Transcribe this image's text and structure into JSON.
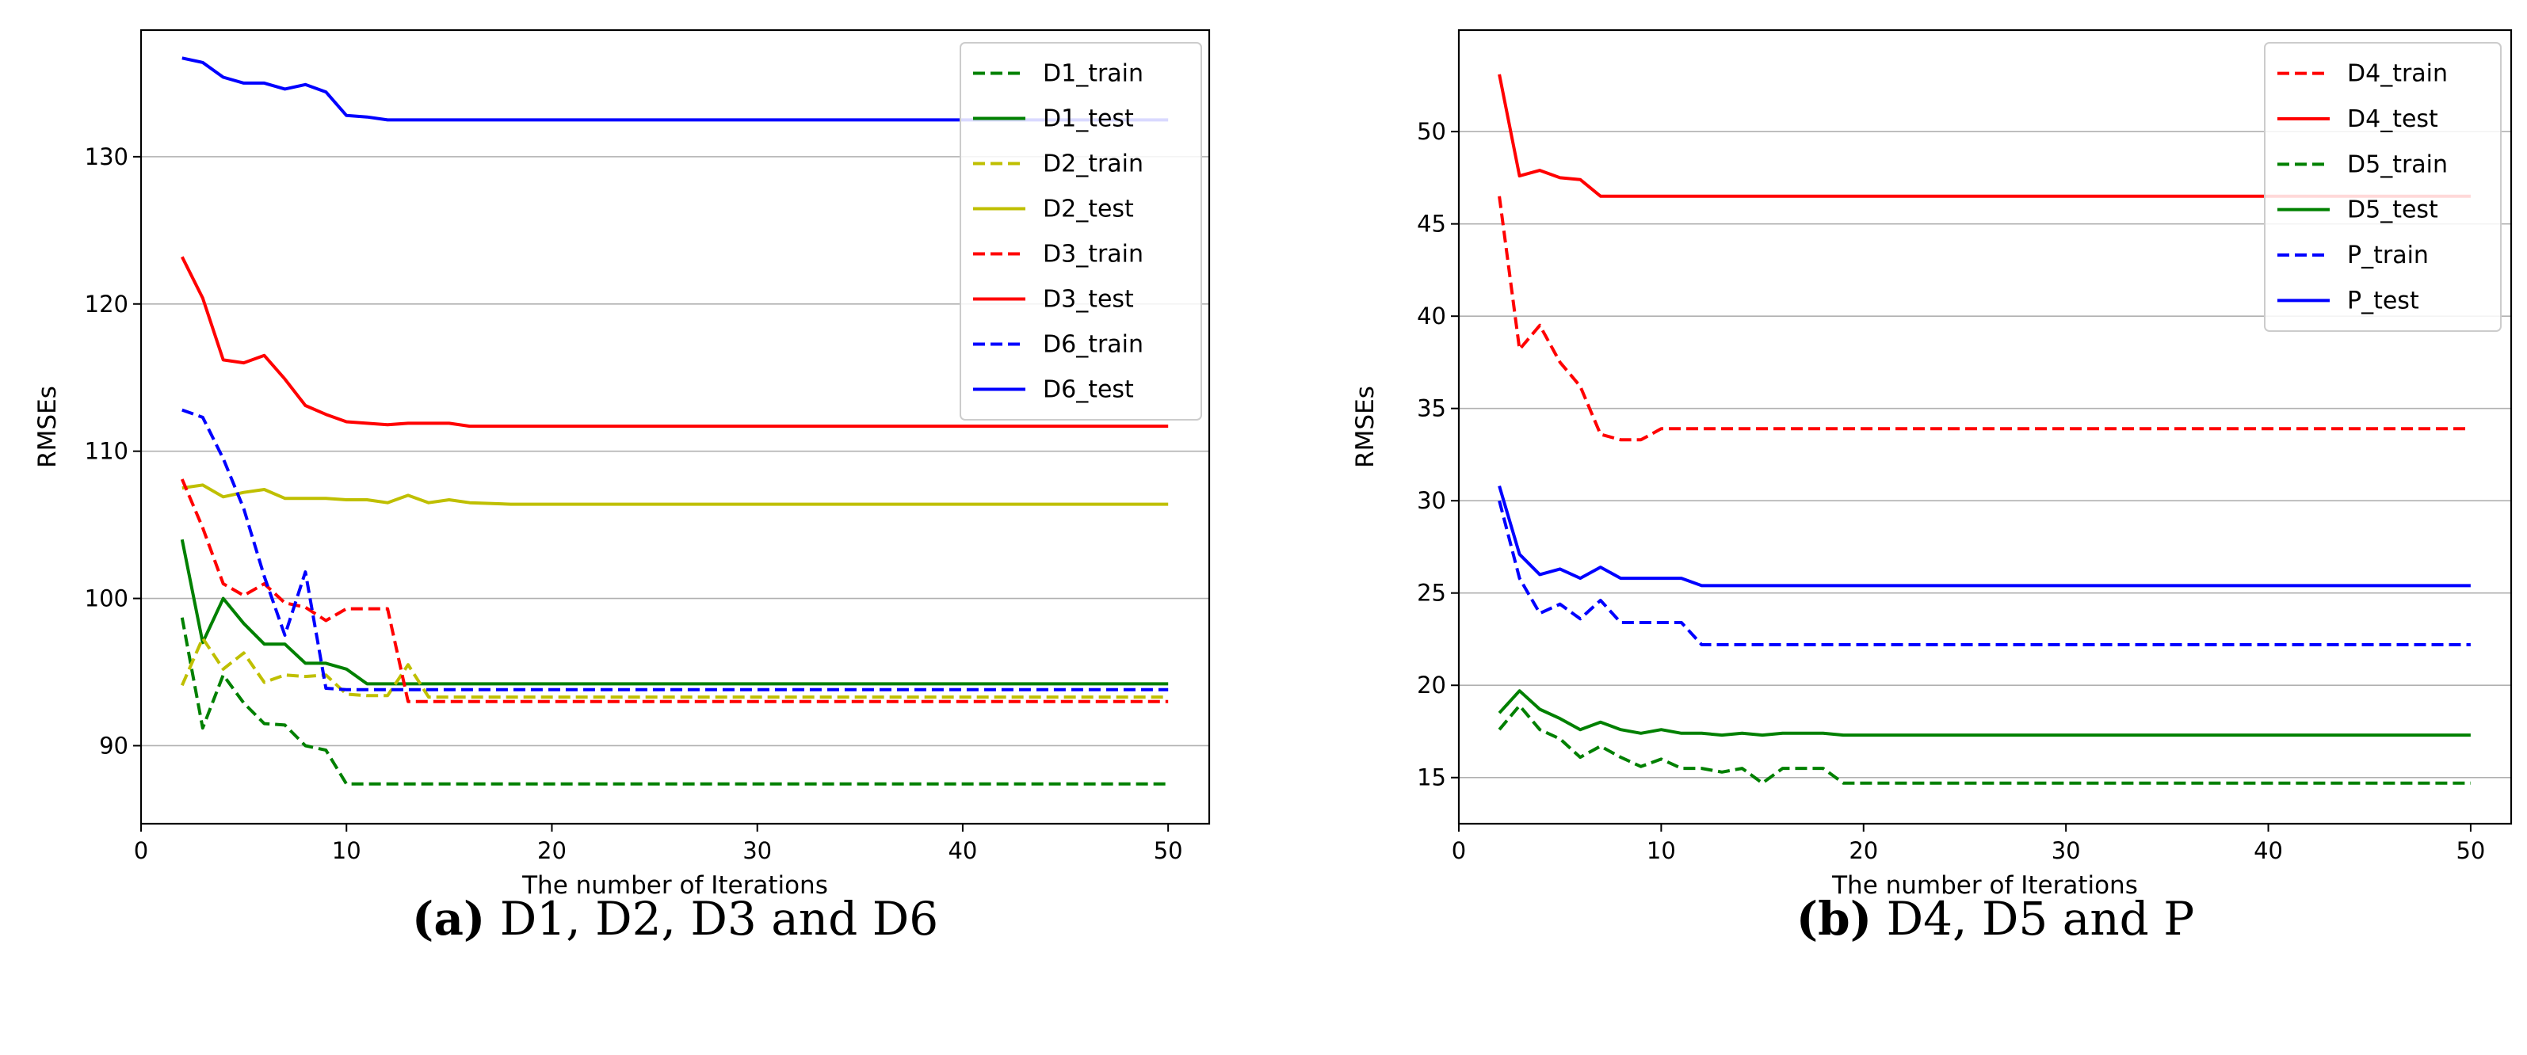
{
  "chart_data": [
    {
      "type": "line",
      "xlabel": "The number of Iterations",
      "ylabel": "RMSEs",
      "xlim": [
        0,
        52
      ],
      "ylim": [
        84.7,
        138.6
      ],
      "xticks": [
        0,
        10,
        20,
        30,
        40,
        50
      ],
      "yticks": [
        90,
        100,
        110,
        120,
        130
      ],
      "grid": "horizontal",
      "legend_position": "top-right",
      "caption_letter": "(a)",
      "caption_text": "D1, D2, D3 and D6",
      "series": [
        {
          "name": "D1_train",
          "color": "#008000",
          "style": "dashed",
          "x": [
            2,
            3,
            4,
            5,
            6,
            7,
            8,
            9,
            10,
            50
          ],
          "y": [
            98.7,
            91.2,
            94.8,
            92.9,
            91.5,
            91.4,
            90.0,
            89.7,
            87.4,
            87.4
          ]
        },
        {
          "name": "D1_test",
          "color": "#008000",
          "style": "solid",
          "x": [
            2,
            3,
            4,
            5,
            6,
            7,
            8,
            9,
            10,
            11,
            12,
            50
          ],
          "y": [
            104.0,
            97.0,
            100.0,
            98.3,
            96.9,
            96.9,
            95.6,
            95.6,
            95.2,
            94.2,
            94.2,
            94.2
          ]
        },
        {
          "name": "D2_train",
          "color": "#bfbf00",
          "style": "dashed",
          "x": [
            2,
            3,
            4,
            5,
            6,
            7,
            8,
            9,
            10,
            11,
            12,
            13,
            14,
            50
          ],
          "y": [
            94.1,
            97.3,
            95.2,
            96.3,
            94.3,
            94.8,
            94.7,
            94.8,
            93.5,
            93.4,
            93.4,
            95.5,
            93.3,
            93.3
          ]
        },
        {
          "name": "D2_test",
          "color": "#bfbf00",
          "style": "solid",
          "x": [
            2,
            3,
            4,
            5,
            6,
            7,
            8,
            9,
            10,
            11,
            12,
            13,
            14,
            15,
            16,
            18,
            50
          ],
          "y": [
            107.5,
            107.7,
            106.9,
            107.2,
            107.4,
            106.8,
            106.8,
            106.8,
            106.7,
            106.7,
            106.5,
            107.0,
            106.5,
            106.7,
            106.5,
            106.4,
            106.4
          ]
        },
        {
          "name": "D3_train",
          "color": "#ff0000",
          "style": "dashed",
          "x": [
            2,
            3,
            4,
            5,
            6,
            7,
            8,
            9,
            10,
            11,
            12,
            13,
            50
          ],
          "y": [
            108.1,
            104.8,
            101.0,
            100.2,
            101.0,
            99.7,
            99.4,
            98.5,
            99.3,
            99.3,
            99.3,
            93.0,
            93.0
          ]
        },
        {
          "name": "D3_test",
          "color": "#ff0000",
          "style": "solid",
          "x": [
            2,
            3,
            4,
            5,
            6,
            7,
            8,
            9,
            10,
            11,
            12,
            13,
            14,
            15,
            16,
            50
          ],
          "y": [
            123.2,
            120.4,
            116.2,
            116.0,
            116.5,
            114.9,
            113.1,
            112.5,
            112.0,
            111.9,
            111.8,
            111.9,
            111.9,
            111.9,
            111.7,
            111.7
          ]
        },
        {
          "name": "D6_train",
          "color": "#0000ff",
          "style": "dashed",
          "x": [
            2,
            3,
            4,
            5,
            6,
            7,
            8,
            9,
            10,
            11,
            50
          ],
          "y": [
            112.8,
            112.3,
            109.5,
            106.1,
            101.5,
            97.5,
            101.8,
            93.9,
            93.8,
            93.8,
            93.8
          ]
        },
        {
          "name": "D6_test",
          "color": "#0000ff",
          "style": "solid",
          "x": [
            2,
            3,
            4,
            5,
            6,
            7,
            8,
            9,
            10,
            11,
            12,
            50
          ],
          "y": [
            136.7,
            136.4,
            135.4,
            135.0,
            135.0,
            134.6,
            134.9,
            134.4,
            132.8,
            132.7,
            132.5,
            132.5
          ]
        }
      ]
    },
    {
      "type": "line",
      "xlabel": "The number of Iterations",
      "ylabel": "RMSEs",
      "xlim": [
        0,
        52
      ],
      "ylim": [
        12.5,
        55.5
      ],
      "xticks": [
        0,
        10,
        20,
        30,
        40,
        50
      ],
      "yticks": [
        15,
        20,
        25,
        30,
        35,
        40,
        45,
        50
      ],
      "grid": "horizontal",
      "legend_position": "top-right",
      "caption_letter": "(b)",
      "caption_text": "D4, D5 and P",
      "series": [
        {
          "name": "D4_train",
          "color": "#ff0000",
          "style": "dashed",
          "x": [
            2,
            3,
            4,
            5,
            6,
            7,
            8,
            9,
            10,
            50
          ],
          "y": [
            46.5,
            38.2,
            39.5,
            37.5,
            36.2,
            33.6,
            33.3,
            33.3,
            33.9,
            33.9
          ]
        },
        {
          "name": "D4_test",
          "color": "#ff0000",
          "style": "solid",
          "x": [
            2,
            3,
            4,
            5,
            6,
            7,
            10,
            50
          ],
          "y": [
            53.1,
            47.6,
            47.9,
            47.5,
            47.4,
            46.5,
            46.5,
            46.5
          ]
        },
        {
          "name": "D5_train",
          "color": "#008000",
          "style": "dashed",
          "x": [
            2,
            3,
            4,
            5,
            6,
            7,
            8,
            9,
            10,
            11,
            12,
            13,
            14,
            15,
            16,
            17,
            18,
            19,
            20,
            50
          ],
          "y": [
            17.6,
            18.9,
            17.6,
            17.1,
            16.1,
            16.7,
            16.1,
            15.6,
            16.0,
            15.5,
            15.5,
            15.3,
            15.5,
            14.7,
            15.5,
            15.5,
            15.5,
            14.7,
            14.7,
            14.7
          ]
        },
        {
          "name": "D5_test",
          "color": "#008000",
          "style": "solid",
          "x": [
            2,
            3,
            4,
            5,
            6,
            7,
            8,
            9,
            10,
            11,
            12,
            13,
            14,
            15,
            16,
            17,
            18,
            19,
            50
          ],
          "y": [
            18.5,
            19.7,
            18.7,
            18.2,
            17.6,
            18.0,
            17.6,
            17.4,
            17.6,
            17.4,
            17.4,
            17.3,
            17.4,
            17.3,
            17.4,
            17.4,
            17.4,
            17.3,
            17.3
          ]
        },
        {
          "name": "P_train",
          "color": "#0000ff",
          "style": "dashed",
          "x": [
            2,
            3,
            4,
            5,
            6,
            7,
            8,
            9,
            10,
            11,
            12,
            50
          ],
          "y": [
            30.0,
            25.8,
            23.9,
            24.4,
            23.6,
            24.6,
            23.4,
            23.4,
            23.4,
            23.4,
            22.2,
            22.2
          ]
        },
        {
          "name": "P_test",
          "color": "#0000ff",
          "style": "solid",
          "x": [
            2,
            3,
            4,
            5,
            6,
            7,
            8,
            9,
            10,
            11,
            12,
            50
          ],
          "y": [
            30.8,
            27.1,
            26.0,
            26.3,
            25.8,
            26.4,
            25.8,
            25.8,
            25.8,
            25.8,
            25.4,
            25.4
          ]
        }
      ]
    }
  ]
}
